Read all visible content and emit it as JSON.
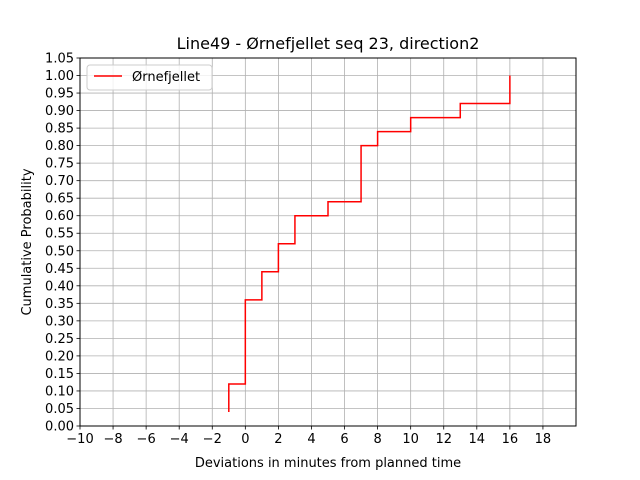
{
  "chart_data": {
    "type": "line",
    "title": "Line49 - Ørnefjellet seq 23, direction2",
    "xlabel": "Deviations in minutes from planned time",
    "ylabel": "Cumulative Probability",
    "xlim": [
      -10,
      20
    ],
    "ylim": [
      0,
      1.05
    ],
    "xticks": [
      -10,
      -8,
      -6,
      -4,
      -2,
      0,
      2,
      4,
      6,
      8,
      10,
      12,
      14,
      16,
      18
    ],
    "xtick_labels": [
      "−10",
      "−8",
      "−6",
      "−4",
      "−2",
      "0",
      "2",
      "4",
      "6",
      "8",
      "10",
      "12",
      "14",
      "16",
      "18"
    ],
    "yticks": [
      0,
      0.05,
      0.1,
      0.15,
      0.2,
      0.25,
      0.3,
      0.35,
      0.4,
      0.45,
      0.5,
      0.55,
      0.6,
      0.65,
      0.7,
      0.75,
      0.8,
      0.85,
      0.9,
      0.95,
      1.0,
      1.05
    ],
    "ytick_labels": [
      "0.00",
      "0.05",
      "0.10",
      "0.15",
      "0.20",
      "0.25",
      "0.30",
      "0.35",
      "0.40",
      "0.45",
      "0.50",
      "0.55",
      "0.60",
      "0.65",
      "0.70",
      "0.75",
      "0.80",
      "0.85",
      "0.90",
      "0.95",
      "1.00",
      "1.05"
    ],
    "grid": true,
    "legend_position": "top-left",
    "series": [
      {
        "name": "Ørnefjellet",
        "color": "#ff0000",
        "step": "post",
        "x": [
          -1,
          -1,
          0,
          0,
          1,
          1,
          2,
          2,
          3,
          3,
          5,
          5,
          7,
          7,
          8,
          8,
          10,
          10,
          13,
          13,
          16,
          16
        ],
        "y": [
          0.04,
          0.12,
          0.12,
          0.36,
          0.36,
          0.44,
          0.44,
          0.52,
          0.52,
          0.6,
          0.6,
          0.64,
          0.64,
          0.8,
          0.8,
          0.84,
          0.84,
          0.88,
          0.88,
          0.92,
          0.92,
          1.0
        ]
      }
    ]
  }
}
